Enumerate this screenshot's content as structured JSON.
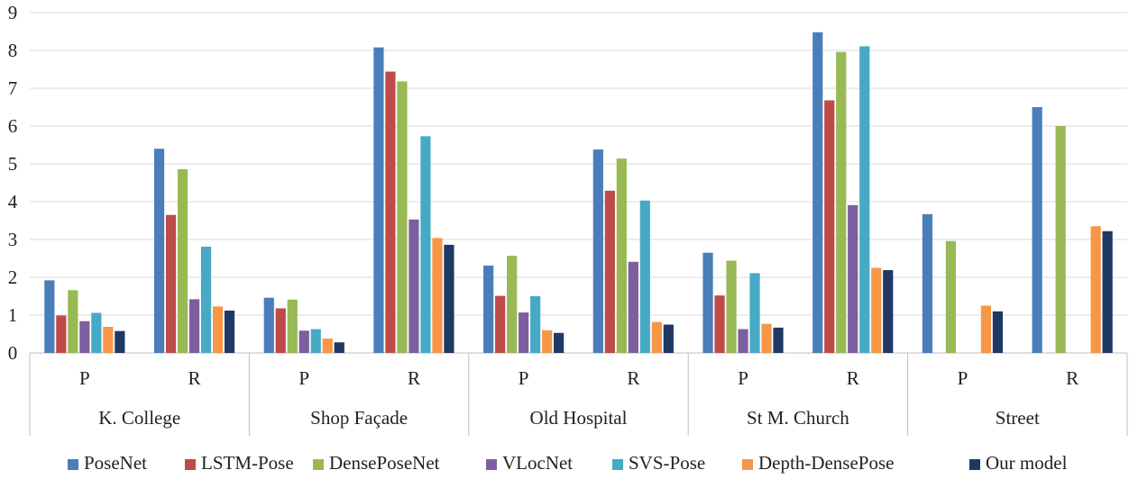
{
  "chart_data": {
    "type": "bar",
    "title": "",
    "xlabel": "",
    "ylabel": "",
    "ylim": [
      0,
      9
    ],
    "yticks": [
      "0",
      "1",
      "2",
      "3",
      "4",
      "5",
      "6",
      "7",
      "8",
      "9"
    ],
    "grid": "horizontal",
    "legend_position": "bottom",
    "groups": [
      "K. College",
      "Shop Façade",
      "Old Hospital",
      "St M. Church",
      "Street"
    ],
    "categories": [
      "P",
      "R",
      "P",
      "R",
      "P",
      "R",
      "P",
      "R",
      "P",
      "R"
    ],
    "series": [
      {
        "name": "PoseNet",
        "color": "#4A7EBB",
        "values": [
          1.92,
          5.4,
          1.46,
          8.08,
          2.31,
          5.38,
          2.65,
          8.48,
          3.67,
          6.5
        ]
      },
      {
        "name": "LSTM-Pose",
        "color": "#BE4B48",
        "values": [
          0.99,
          3.65,
          1.18,
          7.44,
          1.51,
          4.29,
          1.52,
          6.68,
          null,
          null
        ]
      },
      {
        "name": "DensePoseNet",
        "color": "#98B954",
        "values": [
          1.66,
          4.86,
          1.41,
          7.18,
          2.57,
          5.14,
          2.44,
          7.96,
          2.96,
          6.0
        ]
      },
      {
        "name": "VLocNet",
        "color": "#7D5FA0",
        "values": [
          0.84,
          1.42,
          0.59,
          3.53,
          1.07,
          2.41,
          0.63,
          3.91,
          null,
          null
        ]
      },
      {
        "name": "SVS-Pose",
        "color": "#46AAC5",
        "values": [
          1.06,
          2.81,
          0.63,
          5.73,
          1.5,
          4.03,
          2.11,
          8.11,
          null,
          null
        ]
      },
      {
        "name": "Depth-DensePose",
        "color": "#F79646",
        "values": [
          0.69,
          1.23,
          0.38,
          3.04,
          0.6,
          0.82,
          0.77,
          2.25,
          1.25,
          3.35
        ]
      },
      {
        "name": "Our model",
        "color": "#1F3864",
        "values": [
          0.58,
          1.12,
          0.28,
          2.86,
          0.53,
          0.75,
          0.67,
          2.19,
          1.1,
          3.22
        ]
      }
    ]
  }
}
